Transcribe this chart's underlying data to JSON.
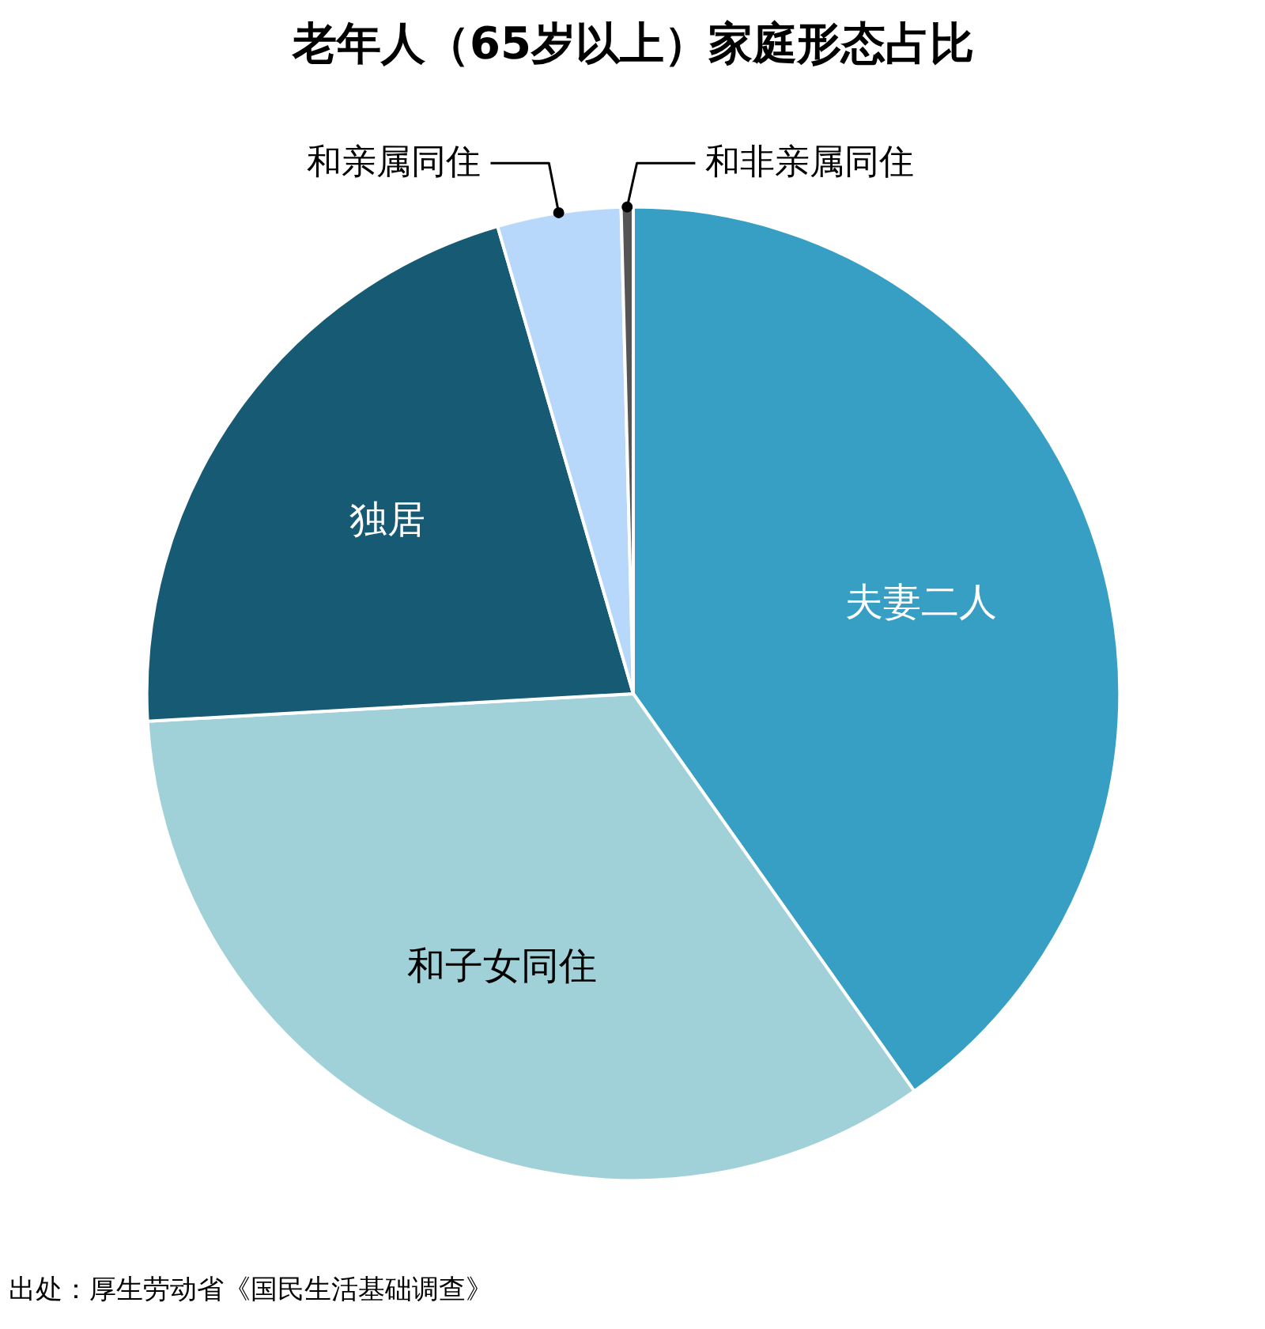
{
  "chart_data": {
    "type": "pie",
    "title": "老年人（65岁以上）家庭形态占比",
    "categories": [
      "夫妻二人",
      "和子女同住",
      "独居",
      "和亲属同住",
      "和非亲属同住"
    ],
    "values": [
      40.2,
      33.9,
      21.4,
      4.1,
      0.4
    ],
    "colors": [
      "#379ec4",
      "#a1d1d8",
      "#175a74",
      "#b7d8fb",
      "#555555"
    ],
    "annotations": [
      "出处：厚生劳动省《国民生活基础调查》"
    ]
  }
}
